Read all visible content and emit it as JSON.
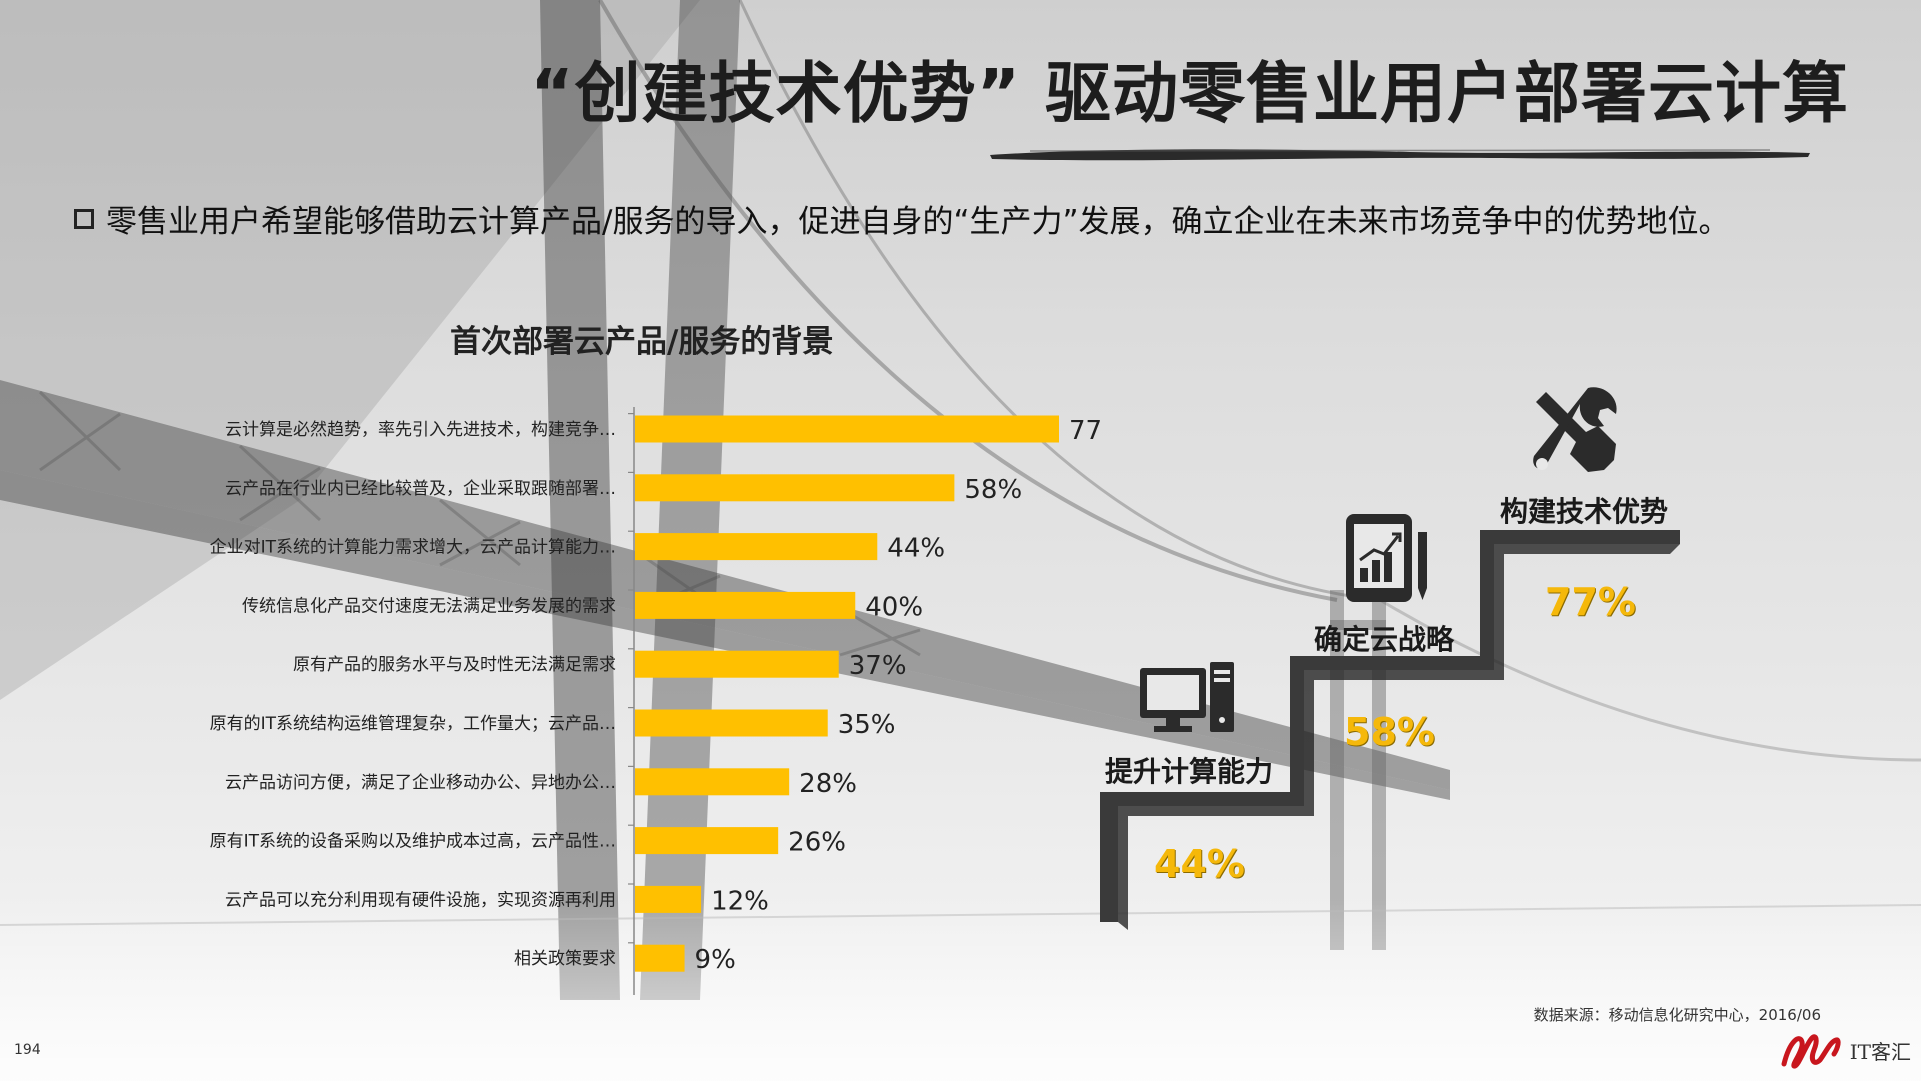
{
  "header": {
    "title": "“创建技术优势” 驱动零售业用户部署云计算",
    "bullet": "零售业用户希望能够借助云计算产品/服务的导入，促进自身的“生产力”发展，确立企业在未来市场竞争中的优势地位。"
  },
  "chart_data": {
    "type": "bar",
    "orientation": "horizontal",
    "title": "首次部署云产品/服务的背景",
    "categories": [
      "云计算是必然趋势，率先引入先进技术，构建竞争…",
      "云产品在行业内已经比较普及，企业采取跟随部署…",
      "企业对IT系统的计算能力需求增大，云产品计算能力…",
      "传统信息化产品交付速度无法满足业务发展的需求",
      "原有产品的服务水平与及时性无法满足需求",
      "原有的IT系统结构运维管理复杂，工作量大；云产品…",
      "云产品访问方便，满足了企业移动办公、异地办公…",
      "原有IT系统的设备采购以及维护成本过高，云产品性…",
      "云产品可以充分利用现有硬件设施，实现资源再利用",
      "相关政策要求"
    ],
    "values": [
      77,
      58,
      44,
      40,
      37,
      35,
      28,
      26,
      12,
      9
    ],
    "value_labels": [
      "77%",
      "58%",
      "44%",
      "40%",
      "37%",
      "35%",
      "28%",
      "26%",
      "12%",
      "9%"
    ],
    "unit": "%",
    "bar_color": "#ffc000",
    "xlim": [
      0,
      100
    ]
  },
  "steps": [
    {
      "label": "提升计算能力",
      "value": "44%",
      "icon": "computer-icon"
    },
    {
      "label": "确定云战略",
      "value": "58%",
      "icon": "tablet-chart-icon"
    },
    {
      "label": "构建技术优势",
      "value": "77%",
      "icon": "tools-icon"
    }
  ],
  "footer": {
    "source": "数据来源：移动信息化研究中心，2016/06",
    "page_number": "194",
    "logo_text": "IT客汇"
  },
  "colors": {
    "accent": "#ffc000",
    "step_pct": "#f5b80a",
    "step_dark": "#3a3a3a"
  }
}
